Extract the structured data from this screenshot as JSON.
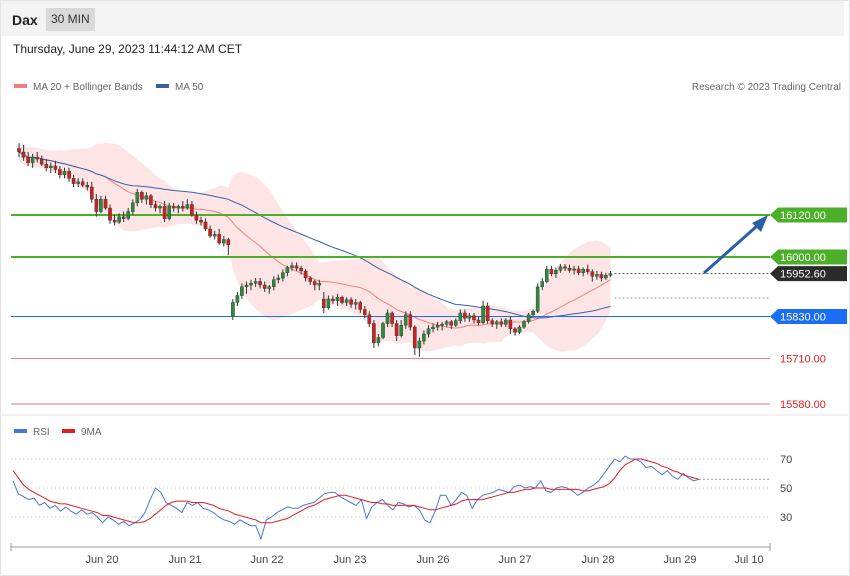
{
  "header": {
    "symbol": "Dax",
    "timeframe": "30 MIN",
    "datetime": "Thursday, June 29, 2023 11:44:12 AM CET"
  },
  "legend": {
    "ma20_label": "MA 20 + Bollinger Bands",
    "ma50_label": "MA 50",
    "copyright": "Research © 2023 Trading Central",
    "rsi_label": "RSI",
    "rsi_ma_label": "9MA"
  },
  "colors": {
    "support": "#4caf28",
    "ma50": "#3a5fa8",
    "pivot": "#1a6ef5",
    "resistance_red": "#f08080",
    "bollinger_fill": "#fde0e0",
    "ma20": "#f08080",
    "candle_up": "#2e8b3a",
    "candle_down": "#cc2222",
    "rsi": "#4a77d4",
    "rsi_ma": "#e02020",
    "arrow": "#2a5ea8"
  },
  "chart_data": [
    {
      "type": "candlestick",
      "x_ticks": [
        "Jun 20",
        "Jun 21",
        "Jun 22",
        "Jun 23",
        "Jun 26",
        "Jun 27",
        "Jun 28",
        "Jun 29",
        "Jul 10"
      ],
      "ylim": [
        15540,
        16420
      ],
      "levels": [
        {
          "value": 16120.0,
          "label": "16120.00",
          "style": "green"
        },
        {
          "value": 16000.0,
          "label": "16000.00",
          "style": "green"
        },
        {
          "value": 15952.6,
          "label": "15952.60",
          "style": "current"
        },
        {
          "value": 15830.0,
          "label": "15830.00",
          "style": "blue"
        },
        {
          "value": 15710.0,
          "label": "15710.00",
          "style": "red"
        },
        {
          "value": 15580.0,
          "label": "15580.00",
          "style": "pink"
        }
      ],
      "series": [
        {
          "name": "MA 20 + Bollinger Bands"
        },
        {
          "name": "MA 50"
        }
      ],
      "ohlc": [
        [
          16310,
          16325,
          16285,
          16300
        ],
        [
          16300,
          16320,
          16275,
          16285
        ],
        [
          16285,
          16300,
          16260,
          16270
        ],
        [
          16270,
          16295,
          16255,
          16285
        ],
        [
          16285,
          16300,
          16270,
          16280
        ],
        [
          16280,
          16290,
          16260,
          16265
        ],
        [
          16265,
          16280,
          16245,
          16255
        ],
        [
          16255,
          16270,
          16240,
          16260
        ],
        [
          16260,
          16275,
          16240,
          16250
        ],
        [
          16250,
          16260,
          16225,
          16235
        ],
        [
          16235,
          16255,
          16225,
          16245
        ],
        [
          16245,
          16255,
          16215,
          16225
        ],
        [
          16225,
          16235,
          16200,
          16210
        ],
        [
          16210,
          16225,
          16200,
          16215
        ],
        [
          16215,
          16225,
          16200,
          16205
        ],
        [
          16205,
          16215,
          16190,
          16200
        ],
        [
          16200,
          16215,
          16155,
          16165
        ],
        [
          16165,
          16180,
          16115,
          16130
        ],
        [
          16130,
          16175,
          16125,
          16165
        ],
        [
          16165,
          16175,
          16135,
          16140
        ],
        [
          16140,
          16150,
          16095,
          16105
        ],
        [
          16105,
          16120,
          16090,
          16100
        ],
        [
          16100,
          16125,
          16095,
          16115
        ],
        [
          16115,
          16130,
          16100,
          16110
        ],
        [
          16110,
          16140,
          16105,
          16130
        ],
        [
          16130,
          16165,
          16120,
          16155
        ],
        [
          16155,
          16195,
          16145,
          16185
        ],
        [
          16185,
          16190,
          16155,
          16165
        ],
        [
          16165,
          16185,
          16150,
          16175
        ],
        [
          16175,
          16180,
          16140,
          16150
        ],
        [
          16150,
          16160,
          16130,
          16140
        ],
        [
          16140,
          16150,
          16125,
          16145
        ],
        [
          16145,
          16160,
          16100,
          16110
        ],
        [
          16110,
          16155,
          16105,
          16145
        ],
        [
          16145,
          16155,
          16130,
          16140
        ],
        [
          16140,
          16150,
          16125,
          16145
        ],
        [
          16145,
          16160,
          16130,
          16140
        ],
        [
          16140,
          16165,
          16135,
          16150
        ],
        [
          16150,
          16160,
          16115,
          16120
        ],
        [
          16120,
          16130,
          16095,
          16105
        ],
        [
          16105,
          16115,
          16090,
          16100
        ],
        [
          16100,
          16110,
          16075,
          16080
        ],
        [
          16080,
          16090,
          16055,
          16060
        ],
        [
          16060,
          16075,
          16050,
          16065
        ],
        [
          16065,
          16080,
          16035,
          16040
        ],
        [
          16040,
          16060,
          16030,
          16050
        ],
        [
          16050,
          16055,
          16005,
          16035
        ],
        [
          15830,
          15880,
          15820,
          15870
        ],
        [
          15870,
          15900,
          15860,
          15890
        ],
        [
          15890,
          15925,
          15880,
          15915
        ],
        [
          15915,
          15930,
          15895,
          15920
        ],
        [
          15920,
          15935,
          15905,
          15925
        ],
        [
          15925,
          15940,
          15915,
          15930
        ],
        [
          15930,
          15940,
          15910,
          15920
        ],
        [
          15920,
          15930,
          15900,
          15910
        ],
        [
          15910,
          15920,
          15895,
          15915
        ],
        [
          15915,
          15945,
          15905,
          15935
        ],
        [
          15935,
          15950,
          15925,
          15940
        ],
        [
          15940,
          15965,
          15930,
          15955
        ],
        [
          15955,
          15975,
          15945,
          15970
        ],
        [
          15970,
          15985,
          15960,
          15975
        ],
        [
          15975,
          15985,
          15960,
          15968
        ],
        [
          15968,
          15975,
          15950,
          15960
        ],
        [
          15960,
          15965,
          15930,
          15940
        ],
        [
          15940,
          15945,
          15920,
          15930
        ],
        [
          15930,
          15935,
          15905,
          15920
        ],
        [
          15920,
          15935,
          15905,
          15925
        ],
        [
          15880,
          15900,
          15840,
          15855
        ],
        [
          15855,
          15890,
          15850,
          15880
        ],
        [
          15880,
          15890,
          15865,
          15875
        ],
        [
          15875,
          15895,
          15860,
          15885
        ],
        [
          15885,
          15890,
          15865,
          15870
        ],
        [
          15870,
          15885,
          15860,
          15878
        ],
        [
          15878,
          15885,
          15855,
          15865
        ],
        [
          15865,
          15880,
          15850,
          15870
        ],
        [
          15870,
          15875,
          15840,
          15850
        ],
        [
          15850,
          15860,
          15825,
          15835
        ],
        [
          15835,
          15845,
          15800,
          15810
        ],
        [
          15810,
          15820,
          15740,
          15755
        ],
        [
          15755,
          15780,
          15745,
          15770
        ],
        [
          15770,
          15815,
          15765,
          15810
        ],
        [
          15810,
          15850,
          15800,
          15840
        ],
        [
          15840,
          15845,
          15800,
          15810
        ],
        [
          15810,
          15820,
          15760,
          15775
        ],
        [
          15775,
          15820,
          15770,
          15805
        ],
        [
          15805,
          15845,
          15795,
          15835
        ],
        [
          15835,
          15845,
          15790,
          15800
        ],
        [
          15800,
          15805,
          15720,
          15740
        ],
        [
          15740,
          15770,
          15715,
          15760
        ],
        [
          15760,
          15790,
          15750,
          15780
        ],
        [
          15780,
          15805,
          15770,
          15795
        ],
        [
          15795,
          15810,
          15785,
          15800
        ],
        [
          15800,
          15815,
          15790,
          15805
        ],
        [
          15805,
          15815,
          15790,
          15808
        ],
        [
          15808,
          15820,
          15800,
          15815
        ],
        [
          15815,
          15820,
          15795,
          15805
        ],
        [
          15805,
          15825,
          15800,
          15818
        ],
        [
          15818,
          15850,
          15810,
          15840
        ],
        [
          15840,
          15850,
          15815,
          15825
        ],
        [
          15825,
          15840,
          15815,
          15832
        ],
        [
          15832,
          15840,
          15810,
          15820
        ],
        [
          15820,
          15830,
          15805,
          15812
        ],
        [
          15812,
          15875,
          15808,
          15860
        ],
        [
          15860,
          15870,
          15810,
          15818
        ],
        [
          15818,
          15825,
          15800,
          15810
        ],
        [
          15810,
          15820,
          15795,
          15815
        ],
        [
          15815,
          15825,
          15800,
          15808
        ],
        [
          15808,
          15825,
          15800,
          15820
        ],
        [
          15820,
          15830,
          15780,
          15795
        ],
        [
          15795,
          15800,
          15775,
          15785
        ],
        [
          15785,
          15805,
          15780,
          15800
        ],
        [
          15800,
          15820,
          15795,
          15815
        ],
        [
          15815,
          15840,
          15810,
          15835
        ],
        [
          15835,
          15850,
          15830,
          15845
        ],
        [
          15845,
          15925,
          15840,
          15915
        ],
        [
          15915,
          15940,
          15905,
          15930
        ],
        [
          15930,
          15975,
          15925,
          15965
        ],
        [
          15965,
          15975,
          15945,
          15952
        ],
        [
          15952,
          15970,
          15940,
          15962
        ],
        [
          15962,
          15980,
          15955,
          15972
        ],
        [
          15972,
          15980,
          15960,
          15968
        ],
        [
          15968,
          15978,
          15955,
          15962
        ],
        [
          15962,
          15975,
          15950,
          15966
        ],
        [
          15966,
          15975,
          15948,
          15955
        ],
        [
          15955,
          15970,
          15945,
          15965
        ],
        [
          15965,
          15978,
          15950,
          15958
        ],
        [
          15958,
          15965,
          15930,
          15945
        ],
        [
          15945,
          15960,
          15935,
          15950
        ],
        [
          15950,
          15958,
          15930,
          15940
        ],
        [
          15940,
          15955,
          15935,
          15948
        ],
        [
          15948,
          15960,
          15942,
          15952.6
        ]
      ]
    },
    {
      "type": "line",
      "series": [
        {
          "name": "RSI"
        },
        {
          "name": "9MA"
        }
      ],
      "y_ticks": [
        70,
        50,
        30
      ],
      "ylim": [
        10,
        85
      ],
      "rsi": [
        55,
        46,
        44,
        42,
        43,
        38,
        40,
        36,
        38,
        34,
        37,
        34,
        32,
        35,
        32,
        33,
        30,
        26,
        30,
        28,
        25,
        27,
        24,
        26,
        28,
        33,
        42,
        50,
        47,
        40,
        38,
        36,
        33,
        40,
        38,
        40,
        36,
        35,
        33,
        30,
        28,
        27,
        25,
        28,
        26,
        24,
        24,
        15,
        28,
        30,
        33,
        35,
        37,
        36,
        36,
        38,
        39,
        40,
        43,
        46,
        47,
        47,
        44,
        42,
        40,
        38,
        42,
        29,
        37,
        40,
        42,
        38,
        35,
        40,
        39,
        37,
        38,
        35,
        28,
        26,
        34,
        45,
        45,
        38,
        42,
        47,
        45,
        36,
        42,
        45,
        46,
        47,
        49,
        48,
        47,
        51,
        52,
        50,
        51,
        50,
        55,
        48,
        47,
        50,
        51,
        50,
        48,
        45,
        47,
        50,
        52,
        55,
        60,
        65,
        70,
        68,
        72,
        70,
        70,
        68,
        64,
        65,
        62,
        59,
        62,
        58,
        56,
        60,
        57,
        55,
        56
      ],
      "rsi_ma": [
        62,
        57,
        52,
        49,
        47,
        45,
        43,
        41,
        40,
        39,
        39,
        38,
        37,
        36,
        35,
        34,
        33,
        31,
        31,
        30,
        29,
        28,
        27,
        26,
        26,
        27,
        29,
        32,
        35,
        38,
        40,
        41,
        41,
        41,
        40,
        40,
        40,
        39,
        38,
        36,
        35,
        34,
        32,
        31,
        30,
        29,
        28,
        26,
        26,
        26,
        27,
        28,
        29,
        31,
        33,
        35,
        37,
        38,
        40,
        42,
        43,
        44,
        45,
        45,
        44,
        43,
        42,
        41,
        40,
        40,
        39,
        39,
        38,
        38,
        38,
        38,
        38,
        37,
        36,
        35,
        35,
        36,
        37,
        38,
        39,
        41,
        42,
        42,
        42,
        42,
        43,
        44,
        45,
        46,
        47,
        47,
        48,
        49,
        49,
        50,
        50,
        50,
        49,
        49,
        49,
        49,
        49,
        49,
        48,
        48,
        49,
        50,
        51,
        53,
        57,
        62,
        66,
        68,
        70,
        70,
        69,
        68,
        67,
        65,
        64,
        62,
        61,
        59,
        58,
        57,
        56
      ]
    }
  ]
}
